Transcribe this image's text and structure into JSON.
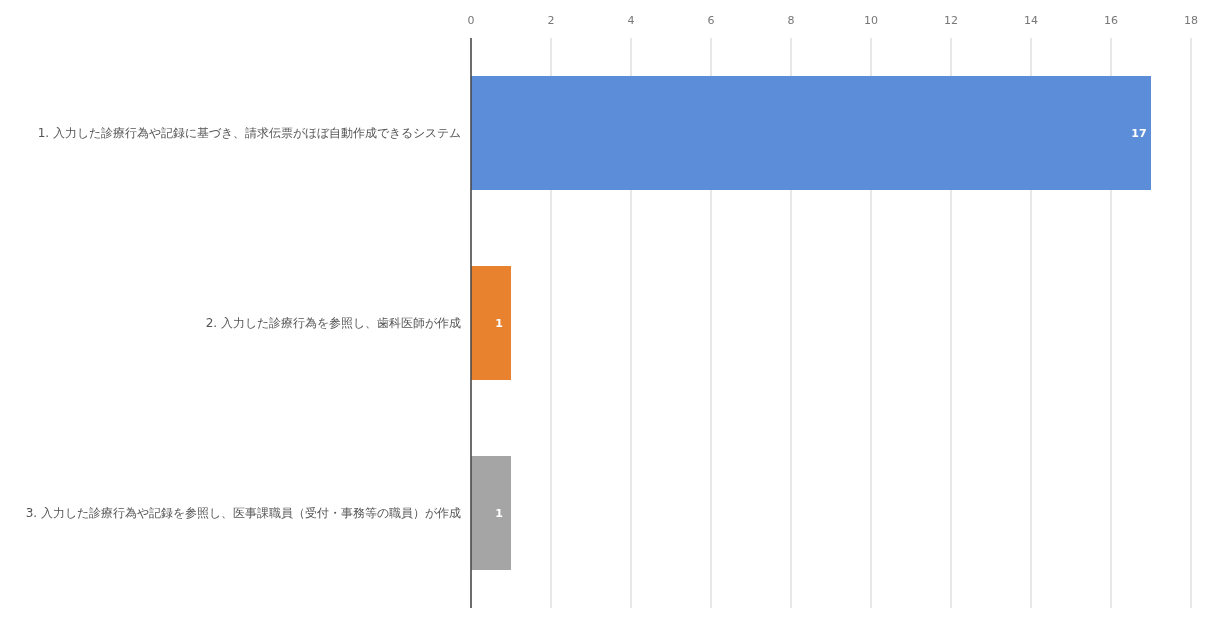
{
  "chart_data": {
    "type": "bar",
    "orientation": "horizontal",
    "categories": [
      "1. 入力した診療行為や記録に基づき、請求伝票がほぼ自動作成できるシステム",
      "2. 入力した診療行為を参照し、歯科医師が作成",
      "3. 入力した診療行為や記録を参照し、医事課職員（受付・事務等の職員）が作成"
    ],
    "values": [
      17,
      1,
      1
    ],
    "colors": [
      "#5b8dd9",
      "#e8822e",
      "#a5a5a5"
    ],
    "xlim": [
      0,
      18
    ],
    "xticks": [
      0,
      2,
      4,
      6,
      8,
      10,
      12,
      14,
      16,
      18
    ],
    "grid": "x",
    "data_labels": true
  }
}
